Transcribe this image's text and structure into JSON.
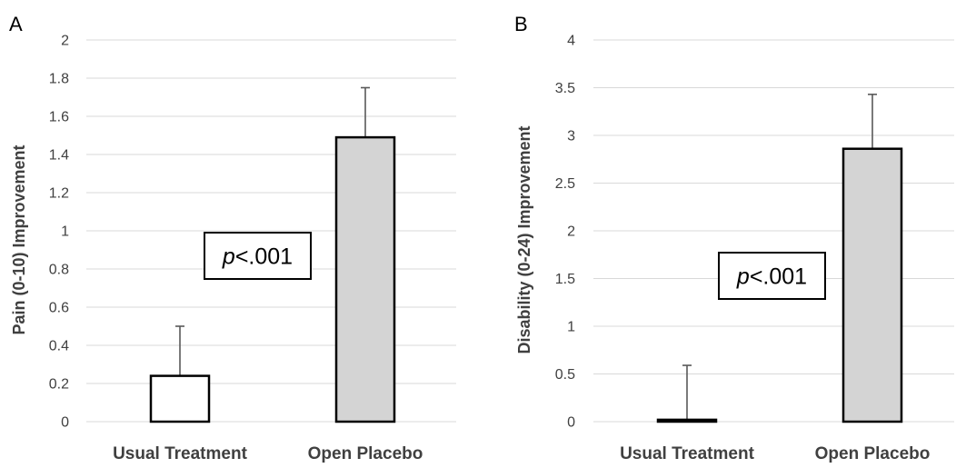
{
  "chart_data": [
    {
      "type": "bar",
      "panel_label": "A",
      "ylabel": "Pain (0-10) Improvement",
      "xlabel": "",
      "ylim": [
        0,
        2
      ],
      "y_ticks": [
        "0",
        "0.2",
        "0.4",
        "0.6",
        "0.8",
        "1",
        "1.2",
        "1.4",
        "1.6",
        "1.8",
        "2"
      ],
      "grid": true,
      "categories": [
        "Usual Treatment",
        "Open Placebo"
      ],
      "values": [
        0.24,
        1.49
      ],
      "error_upper": [
        0.5,
        1.75
      ],
      "bar_fills": [
        "#ffffff",
        "#d4d4d4"
      ],
      "annotation": {
        "italic": "p",
        "rest": "<.001"
      }
    },
    {
      "type": "bar",
      "panel_label": "B",
      "ylabel": "Disability (0-24) Improvement",
      "xlabel": "",
      "ylim": [
        0,
        4
      ],
      "y_ticks": [
        "0",
        "0.5",
        "1",
        "1.5",
        "2",
        "2.5",
        "3",
        "3.5",
        "4"
      ],
      "grid": true,
      "categories": [
        "Usual Treatment",
        "Open Placebo"
      ],
      "values": [
        0.02,
        2.86
      ],
      "error_upper": [
        0.59,
        3.43
      ],
      "bar_fills": [
        "#ffffff",
        "#d4d4d4"
      ],
      "annotation": {
        "italic": "p",
        "rest": "<.001"
      }
    }
  ]
}
